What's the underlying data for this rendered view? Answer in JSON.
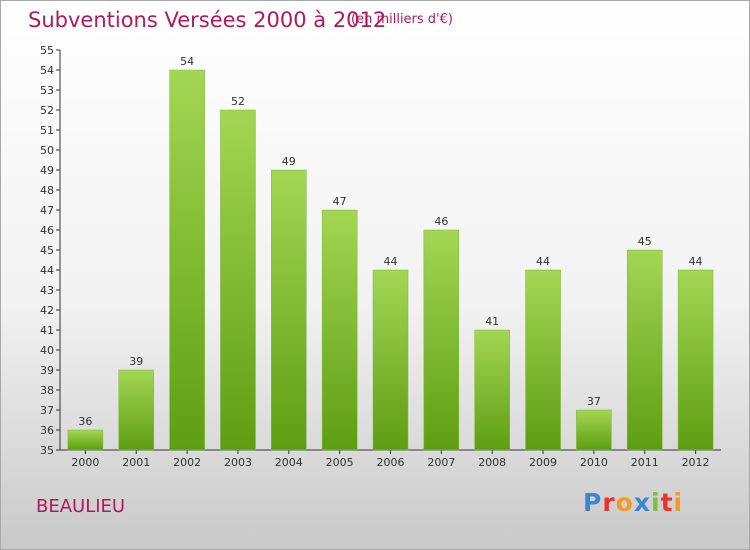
{
  "title": "Subventions Versées 2000 à 2012",
  "subtitle": "(en milliers d'€)",
  "city": "BEAULIEU",
  "logo": {
    "letters": [
      "P",
      "r",
      "o",
      "x",
      "i",
      "t",
      "i"
    ],
    "colors": [
      "#3a86d1",
      "#e8342c",
      "#f39a1e",
      "#3a86d1",
      "#7fbf3a",
      "#e8342c",
      "#f39a1e"
    ]
  },
  "colors": {
    "bar_light": "#a3d654",
    "bar_dark": "#5e9e12",
    "title": "#b0195a"
  },
  "chart_data": {
    "type": "bar",
    "categories": [
      "2000",
      "2001",
      "2002",
      "2003",
      "2004",
      "2005",
      "2006",
      "2007",
      "2008",
      "2009",
      "2010",
      "2011",
      "2012"
    ],
    "values": [
      36,
      39,
      54,
      52,
      49,
      47,
      44,
      46,
      41,
      44,
      37,
      45,
      44
    ],
    "ylim": [
      35,
      55
    ],
    "yticks": [
      35,
      36,
      37,
      38,
      39,
      40,
      41,
      42,
      43,
      44,
      45,
      46,
      47,
      48,
      49,
      50,
      51,
      52,
      53,
      54,
      55
    ],
    "grid": false,
    "legend": "none"
  }
}
